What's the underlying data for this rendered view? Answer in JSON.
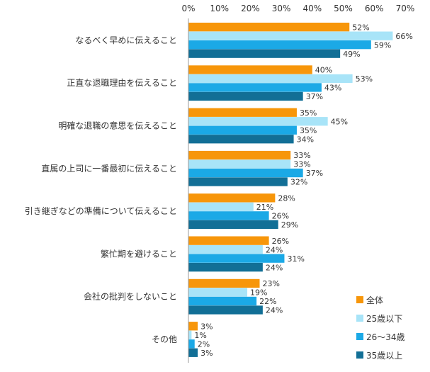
{
  "chart_data": {
    "type": "bar",
    "orientation": "horizontal",
    "title": "",
    "xlabel": "",
    "ylabel": "",
    "xlim": [
      0,
      70
    ],
    "x_ticks": [
      "0%",
      "10%",
      "20%",
      "30%",
      "40%",
      "50%",
      "60%",
      "70%"
    ],
    "value_suffix": "%",
    "grid": false,
    "legend_position": "bottom-right",
    "categories": [
      "なるべく早めに伝えること",
      "正直な退職理由を伝えること",
      "明確な退職の意思を伝えること",
      "直属の上司に一番最初に伝えること",
      "引き継ぎなどの準備について伝えること",
      "繁忙期を避けること",
      "会社の批判をしないこと",
      "その他"
    ],
    "series": [
      {
        "name": "全体",
        "color": "#F7960A",
        "values": [
          52,
          40,
          35,
          33,
          28,
          26,
          23,
          3
        ]
      },
      {
        "name": "25歳以下",
        "color": "#A8E4F8",
        "values": [
          66,
          53,
          45,
          33,
          21,
          24,
          19,
          1
        ]
      },
      {
        "name": "26～34歳",
        "color": "#1BA9E6",
        "values": [
          59,
          43,
          35,
          37,
          26,
          31,
          22,
          2
        ]
      },
      {
        "name": "35歳以上",
        "color": "#126F96",
        "values": [
          49,
          37,
          34,
          32,
          29,
          24,
          24,
          3
        ]
      }
    ]
  }
}
